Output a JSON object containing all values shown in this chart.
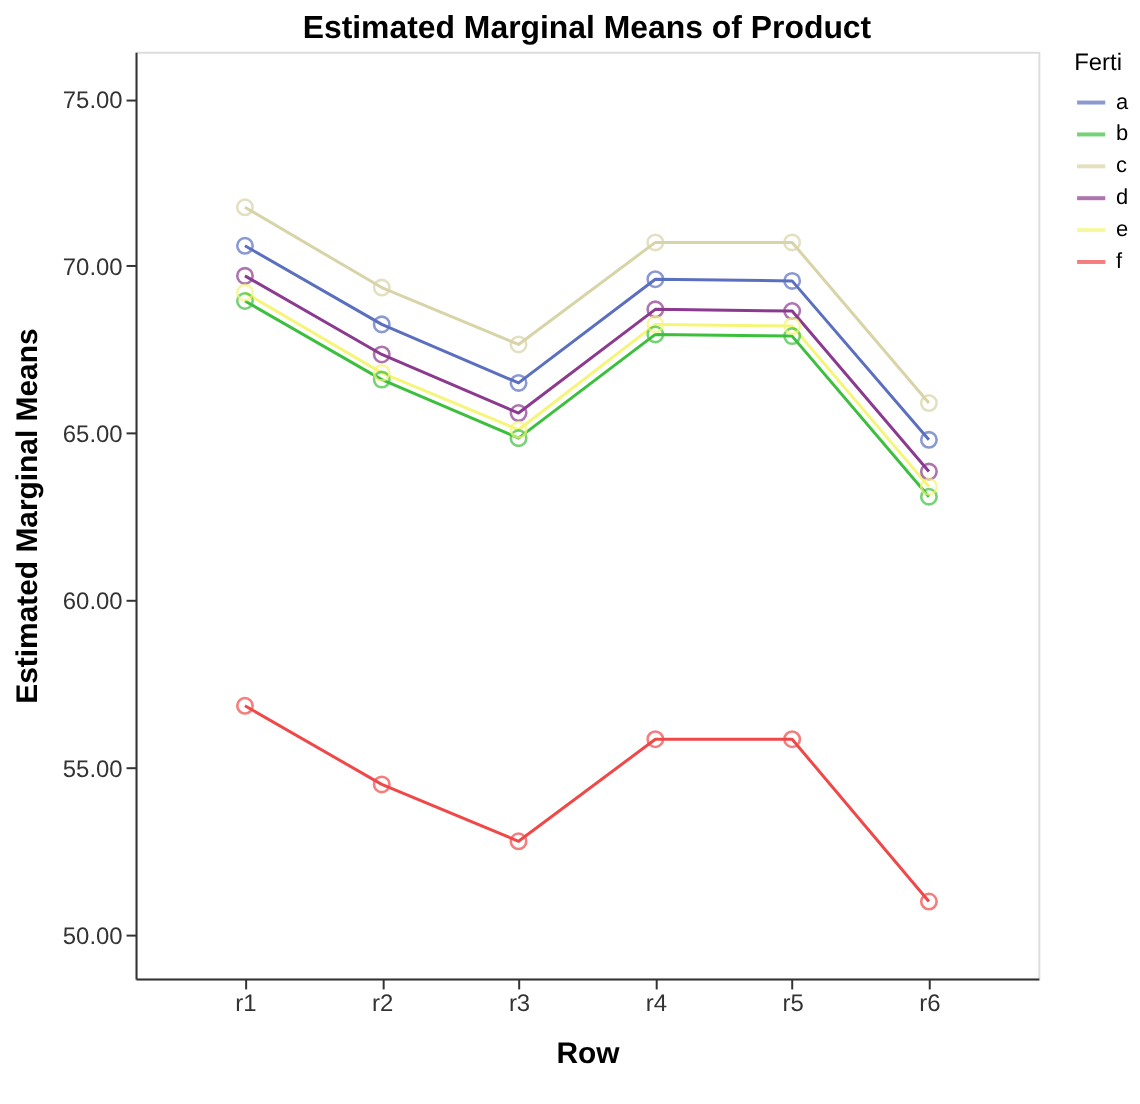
{
  "chart_data": {
    "type": "line",
    "title": "Estimated Marginal Means of Product",
    "xlabel": "Row",
    "ylabel": "Estimated Marginal Means",
    "legend_title": "Ferti",
    "legend": "right",
    "marker": "circle",
    "grid": false,
    "categories": [
      "r1",
      "r2",
      "r3",
      "r4",
      "r5",
      "r6"
    ],
    "ylim": [
      48.7,
      76.4
    ],
    "yticks": [
      {
        "value": 50,
        "label": "50.00"
      },
      {
        "value": 55,
        "label": "55.00"
      },
      {
        "value": 60,
        "label": "60.00"
      },
      {
        "value": 65,
        "label": "65.00"
      },
      {
        "value": 70,
        "label": "70.00"
      },
      {
        "value": 75,
        "label": "75.00"
      }
    ],
    "series": [
      {
        "name": "a",
        "color": "#5b6fc0",
        "values": [
          70.6,
          68.25,
          66.5,
          69.6,
          69.55,
          64.8
        ]
      },
      {
        "name": "b",
        "color": "#3cbf3c",
        "values": [
          68.95,
          66.6,
          64.85,
          67.95,
          67.9,
          63.1
        ]
      },
      {
        "name": "c",
        "color": "#d8d4a8",
        "values": [
          71.75,
          69.35,
          67.65,
          70.7,
          70.7,
          65.9
        ]
      },
      {
        "name": "d",
        "color": "#8b3a8f",
        "values": [
          69.7,
          67.35,
          65.6,
          68.7,
          68.65,
          63.85
        ]
      },
      {
        "name": "e",
        "color": "#f5f57a",
        "values": [
          69.2,
          66.8,
          65.1,
          68.25,
          68.2,
          63.4
        ]
      },
      {
        "name": "f",
        "color": "#f04848",
        "values": [
          56.85,
          54.5,
          52.8,
          55.85,
          55.85,
          51.0
        ]
      }
    ]
  }
}
